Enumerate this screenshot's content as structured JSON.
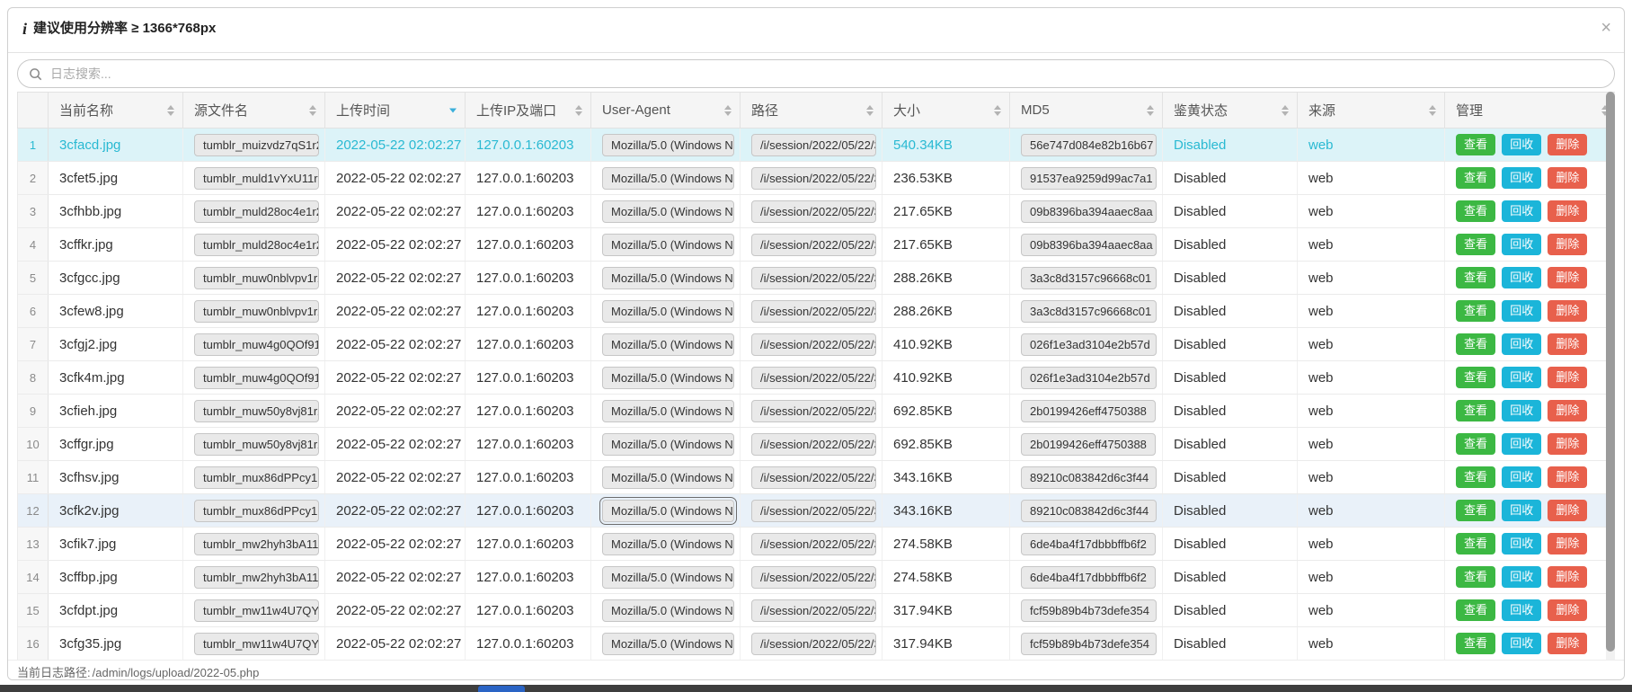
{
  "modal": {
    "info_icon": "i",
    "title": "建议使用分辨率 ≥ 1366*768px",
    "close_icon": "×"
  },
  "search": {
    "placeholder": "日志搜索..."
  },
  "table": {
    "columns": [
      {
        "label": "当前名称",
        "sort": "both"
      },
      {
        "label": "源文件名",
        "sort": "both"
      },
      {
        "label": "上传时间",
        "sort": "desc"
      },
      {
        "label": "上传IP及端口",
        "sort": "both"
      },
      {
        "label": "User-Agent",
        "sort": "both"
      },
      {
        "label": "路径",
        "sort": "both"
      },
      {
        "label": "大小",
        "sort": "both"
      },
      {
        "label": "MD5",
        "sort": "both"
      },
      {
        "label": "鉴黄状态",
        "sort": "both"
      },
      {
        "label": "来源",
        "sort": "both"
      },
      {
        "label": "管理",
        "sort": "both"
      }
    ],
    "actions": {
      "view": "查看",
      "recycle": "回收",
      "delete": "删除"
    },
    "rows": [
      {
        "index": "1",
        "name": "3cfacd.jpg",
        "source_file": "tumblr_muizvdz7qS1r2",
        "time": "2022-05-22 02:02:27",
        "ip": "127.0.0.1:60203",
        "user_agent": "Mozilla/5.0 (Windows N",
        "path": "/i/session/2022/05/22/3",
        "size": "540.34KB",
        "md5": "56e747d084e82b16b67",
        "status": "Disabled",
        "source": "web",
        "state": "active"
      },
      {
        "index": "2",
        "name": "3cfet5.jpg",
        "source_file": "tumblr_muld1vYxU11r2",
        "time": "2022-05-22 02:02:27",
        "ip": "127.0.0.1:60203",
        "user_agent": "Mozilla/5.0 (Windows N",
        "path": "/i/session/2022/05/22/3",
        "size": "236.53KB",
        "md5": "91537ea9259d99ac7a1",
        "status": "Disabled",
        "source": "web",
        "state": ""
      },
      {
        "index": "3",
        "name": "3cfhbb.jpg",
        "source_file": "tumblr_muld28oc4e1r2",
        "time": "2022-05-22 02:02:27",
        "ip": "127.0.0.1:60203",
        "user_agent": "Mozilla/5.0 (Windows N",
        "path": "/i/session/2022/05/22/3",
        "size": "217.65KB",
        "md5": "09b8396ba394aaec8aa",
        "status": "Disabled",
        "source": "web",
        "state": ""
      },
      {
        "index": "4",
        "name": "3cffkr.jpg",
        "source_file": "tumblr_muld28oc4e1r2",
        "time": "2022-05-22 02:02:27",
        "ip": "127.0.0.1:60203",
        "user_agent": "Mozilla/5.0 (Windows N",
        "path": "/i/session/2022/05/22/3",
        "size": "217.65KB",
        "md5": "09b8396ba394aaec8aa",
        "status": "Disabled",
        "source": "web",
        "state": ""
      },
      {
        "index": "5",
        "name": "3cfgcc.jpg",
        "source_file": "tumblr_muw0nblvpv1r2",
        "time": "2022-05-22 02:02:27",
        "ip": "127.0.0.1:60203",
        "user_agent": "Mozilla/5.0 (Windows N",
        "path": "/i/session/2022/05/22/3",
        "size": "288.26KB",
        "md5": "3a3c8d3157c96668c01",
        "status": "Disabled",
        "source": "web",
        "state": ""
      },
      {
        "index": "6",
        "name": "3cfew8.jpg",
        "source_file": "tumblr_muw0nblvpv1r2",
        "time": "2022-05-22 02:02:27",
        "ip": "127.0.0.1:60203",
        "user_agent": "Mozilla/5.0 (Windows N",
        "path": "/i/session/2022/05/22/3",
        "size": "288.26KB",
        "md5": "3a3c8d3157c96668c01",
        "status": "Disabled",
        "source": "web",
        "state": ""
      },
      {
        "index": "7",
        "name": "3cfgj2.jpg",
        "source_file": "tumblr_muw4g0QOf91r",
        "time": "2022-05-22 02:02:27",
        "ip": "127.0.0.1:60203",
        "user_agent": "Mozilla/5.0 (Windows N",
        "path": "/i/session/2022/05/22/3",
        "size": "410.92KB",
        "md5": "026f1e3ad3104e2b57d",
        "status": "Disabled",
        "source": "web",
        "state": ""
      },
      {
        "index": "8",
        "name": "3cfk4m.jpg",
        "source_file": "tumblr_muw4g0QOf91r",
        "time": "2022-05-22 02:02:27",
        "ip": "127.0.0.1:60203",
        "user_agent": "Mozilla/5.0 (Windows N",
        "path": "/i/session/2022/05/22/3",
        "size": "410.92KB",
        "md5": "026f1e3ad3104e2b57d",
        "status": "Disabled",
        "source": "web",
        "state": ""
      },
      {
        "index": "9",
        "name": "3cfieh.jpg",
        "source_file": "tumblr_muw50y8vj81r2",
        "time": "2022-05-22 02:02:27",
        "ip": "127.0.0.1:60203",
        "user_agent": "Mozilla/5.0 (Windows N",
        "path": "/i/session/2022/05/22/3",
        "size": "692.85KB",
        "md5": "2b0199426eff4750388",
        "status": "Disabled",
        "source": "web",
        "state": ""
      },
      {
        "index": "10",
        "name": "3cffgr.jpg",
        "source_file": "tumblr_muw50y8vj81r2",
        "time": "2022-05-22 02:02:27",
        "ip": "127.0.0.1:60203",
        "user_agent": "Mozilla/5.0 (Windows N",
        "path": "/i/session/2022/05/22/3",
        "size": "692.85KB",
        "md5": "2b0199426eff4750388",
        "status": "Disabled",
        "source": "web",
        "state": ""
      },
      {
        "index": "11",
        "name": "3cfhsv.jpg",
        "source_file": "tumblr_mux86dPPcy1r",
        "time": "2022-05-22 02:02:27",
        "ip": "127.0.0.1:60203",
        "user_agent": "Mozilla/5.0 (Windows N",
        "path": "/i/session/2022/05/22/3",
        "size": "343.16KB",
        "md5": "89210c083842d6c3f44",
        "status": "Disabled",
        "source": "web",
        "state": ""
      },
      {
        "index": "12",
        "name": "3cfk2v.jpg",
        "source_file": "tumblr_mux86dPPcy1r",
        "time": "2022-05-22 02:02:27",
        "ip": "127.0.0.1:60203",
        "user_agent": "Mozilla/5.0 (Windows N",
        "path": "/i/session/2022/05/22/3",
        "size": "343.16KB",
        "md5": "89210c083842d6c3f44",
        "status": "Disabled",
        "source": "web",
        "state": "selected"
      },
      {
        "index": "13",
        "name": "3cfik7.jpg",
        "source_file": "tumblr_mw2hyh3bA11r",
        "time": "2022-05-22 02:02:27",
        "ip": "127.0.0.1:60203",
        "user_agent": "Mozilla/5.0 (Windows N",
        "path": "/i/session/2022/05/22/3",
        "size": "274.58KB",
        "md5": "6de4ba4f17dbbbffb6f2",
        "status": "Disabled",
        "source": "web",
        "state": ""
      },
      {
        "index": "14",
        "name": "3cffbp.jpg",
        "source_file": "tumblr_mw2hyh3bA11r",
        "time": "2022-05-22 02:02:27",
        "ip": "127.0.0.1:60203",
        "user_agent": "Mozilla/5.0 (Windows N",
        "path": "/i/session/2022/05/22/3",
        "size": "274.58KB",
        "md5": "6de4ba4f17dbbbffb6f2",
        "status": "Disabled",
        "source": "web",
        "state": ""
      },
      {
        "index": "15",
        "name": "3cfdpt.jpg",
        "source_file": "tumblr_mw11w4U7QY1",
        "time": "2022-05-22 02:02:27",
        "ip": "127.0.0.1:60203",
        "user_agent": "Mozilla/5.0 (Windows N",
        "path": "/i/session/2022/05/22/3",
        "size": "317.94KB",
        "md5": "fcf59b89b4b73defe354",
        "status": "Disabled",
        "source": "web",
        "state": ""
      },
      {
        "index": "16",
        "name": "3cfg35.jpg",
        "source_file": "tumblr_mw11w4U7QY1",
        "time": "2022-05-22 02:02:27",
        "ip": "127.0.0.1:60203",
        "user_agent": "Mozilla/5.0 (Windows N",
        "path": "/i/session/2022/05/22/3",
        "size": "317.94KB",
        "md5": "fcf59b89b4b73defe354",
        "status": "Disabled",
        "source": "web",
        "state": ""
      },
      {
        "index": "",
        "name": "",
        "source_file": "",
        "time": "",
        "ip": "",
        "user_agent": "",
        "path": "",
        "size": "",
        "md5": "",
        "status": "",
        "source": "",
        "state": "partial"
      }
    ]
  },
  "footer": {
    "label": "当前日志路径:",
    "path": "/admin/logs/upload/2022-05.php"
  },
  "colors": {
    "accent_cyan": "#29b9d2",
    "row_active_bg": "#dcf3f8",
    "row_selected_bg": "#e9f1f9",
    "btn_view": "#3cb843",
    "btn_recycle": "#1bb5d9",
    "btn_delete": "#e8604c",
    "sort_active": "#3bafdb",
    "underlay": "#3e3e3e"
  }
}
